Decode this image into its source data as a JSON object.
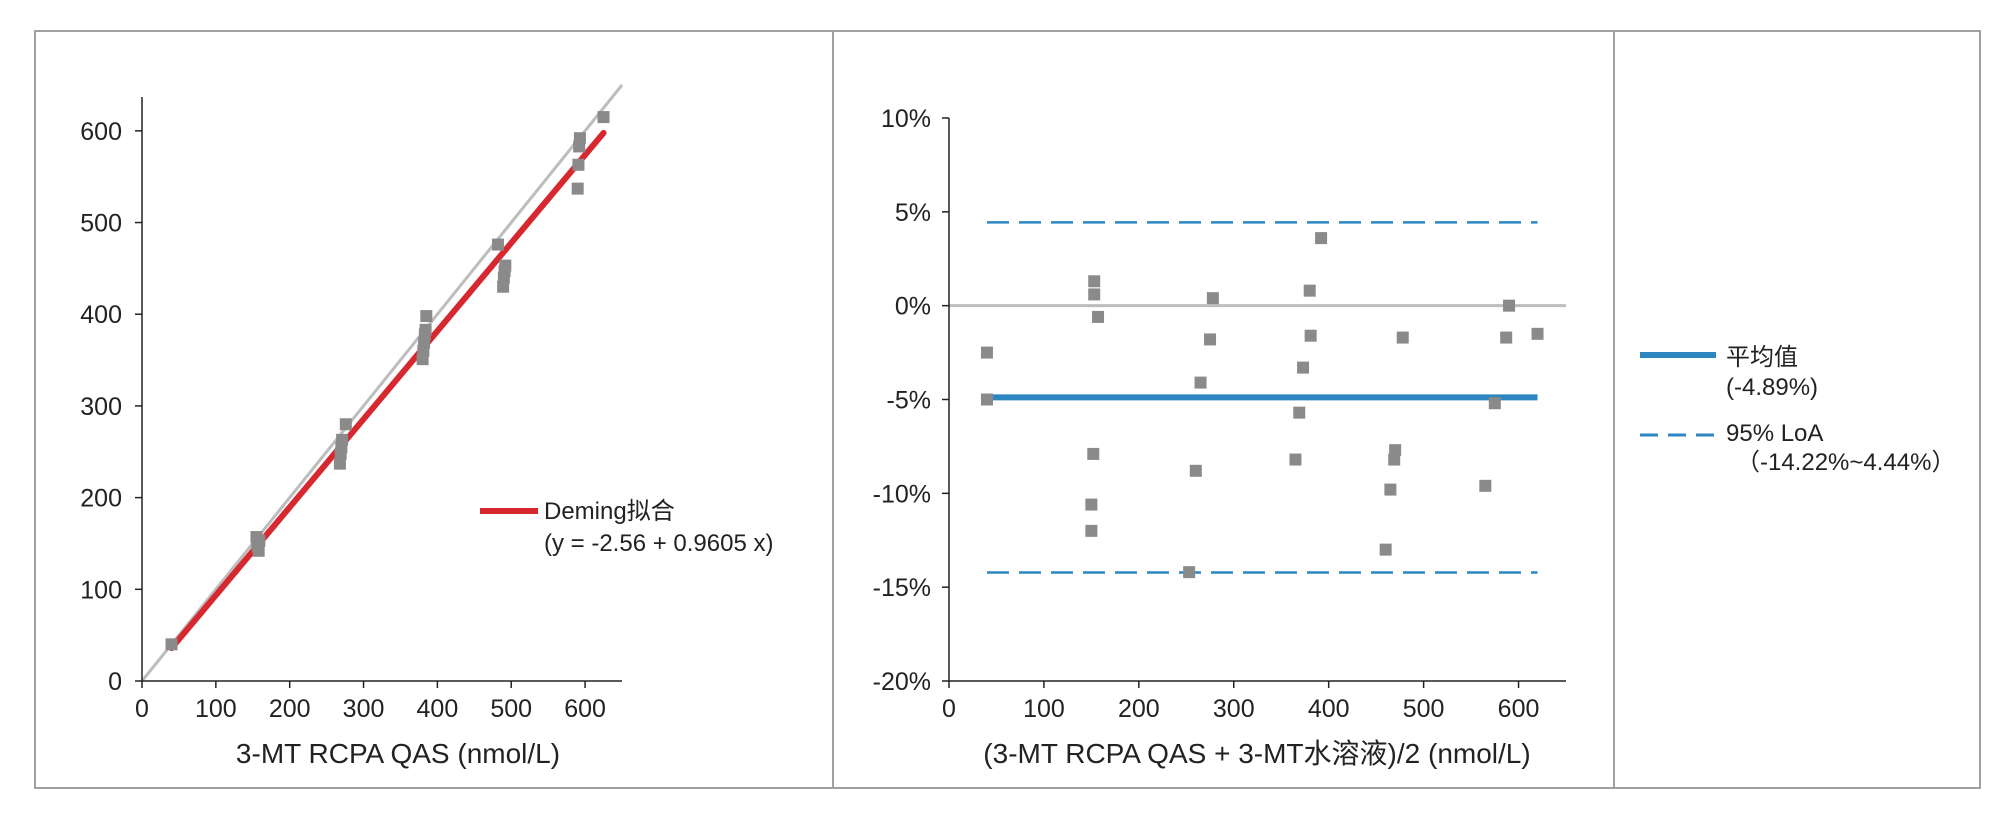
{
  "chart_data": [
    {
      "type": "scatter",
      "xlabel": "3-MT RCPA QAS (nmol/L)",
      "ylabel": "",
      "xlim": [
        0,
        650
      ],
      "ylim": [
        0,
        650
      ],
      "x_ticks": [
        "0",
        "100",
        "200",
        "300",
        "400",
        "500",
        "600"
      ],
      "y_ticks": [
        "0",
        "100",
        "200",
        "300",
        "400",
        "500",
        "600"
      ],
      "grid": false,
      "points": [
        [
          40,
          40
        ],
        [
          155,
          157
        ],
        [
          156,
          150
        ],
        [
          157,
          147
        ],
        [
          158,
          142
        ],
        [
          159,
          153
        ],
        [
          268,
          237
        ],
        [
          269,
          248
        ],
        [
          270,
          255
        ],
        [
          271,
          263
        ],
        [
          276,
          280
        ],
        [
          380,
          351
        ],
        [
          381,
          360
        ],
        [
          382,
          369
        ],
        [
          383,
          378
        ],
        [
          384,
          383
        ],
        [
          385,
          398
        ],
        [
          482,
          476
        ],
        [
          489,
          430
        ],
        [
          490,
          440
        ],
        [
          491,
          447
        ],
        [
          492,
          453
        ],
        [
          590,
          537
        ],
        [
          591,
          563
        ],
        [
          592,
          583
        ],
        [
          593,
          592
        ],
        [
          625,
          615
        ]
      ],
      "identity_line": {
        "from": [
          0,
          0
        ],
        "to": [
          650,
          650
        ]
      },
      "fit_line": {
        "intercept": -2.56,
        "slope": 0.9605,
        "x_range": [
          40,
          625
        ],
        "color": "#d7282f"
      },
      "legend": {
        "position": "right",
        "label": "Deming拟合",
        "equation": "(y = -2.56 + 0.9605 x)"
      }
    },
    {
      "type": "scatter",
      "xlabel": "(3-MT RCPA QAS + 3-MT水溶液)/2 (nmol/L)",
      "ylabel": "",
      "xlim": [
        0,
        650
      ],
      "ylim": [
        -20,
        10
      ],
      "x_ticks": [
        "0",
        "100",
        "200",
        "300",
        "400",
        "500",
        "600"
      ],
      "y_ticks": [
        "10%",
        "5%",
        "0%",
        "-5%",
        "-10%",
        "-15%",
        "-20%"
      ],
      "grid": false,
      "points": [
        [
          40,
          -2.5
        ],
        [
          40,
          -5.0
        ],
        [
          150,
          -10.6
        ],
        [
          150,
          -12.0
        ],
        [
          152,
          -7.9
        ],
        [
          153,
          0.6
        ],
        [
          153,
          1.3
        ],
        [
          157,
          -0.6
        ],
        [
          253,
          -14.2
        ],
        [
          260,
          -8.8
        ],
        [
          265,
          -4.1
        ],
        [
          275,
          -1.8
        ],
        [
          278,
          0.4
        ],
        [
          365,
          -8.2
        ],
        [
          369,
          -5.7
        ],
        [
          373,
          -3.3
        ],
        [
          380,
          0.8
        ],
        [
          381,
          -1.6
        ],
        [
          392,
          3.6
        ],
        [
          460,
          -13.0
        ],
        [
          465,
          -9.8
        ],
        [
          469,
          -8.2
        ],
        [
          470,
          -7.7
        ],
        [
          478,
          -1.7
        ],
        [
          565,
          -9.6
        ],
        [
          575,
          -5.2
        ],
        [
          587,
          -1.7
        ],
        [
          590,
          -0.0
        ],
        [
          620,
          -1.5
        ]
      ],
      "zero_line": 0,
      "mean_line": {
        "value": -4.89,
        "x_range": [
          40,
          620
        ],
        "color": "#2e86c1"
      },
      "loa_lines": {
        "upper": 4.44,
        "lower": -14.22,
        "x_range": [
          40,
          620
        ],
        "color": "#2e86c1"
      }
    }
  ],
  "legend_panel": {
    "mean_label": "平均值",
    "mean_value": "(-4.89%)",
    "loa_label": "95% LoA",
    "loa_value": "（-14.22%~4.44%）"
  },
  "colors": {
    "point": "#8a8a8a",
    "identity": "#bdbdbd",
    "fit": "#d7282f",
    "mean": "#2e86c1",
    "loa": "#2e86c1",
    "frame": "#a0a0a0"
  }
}
